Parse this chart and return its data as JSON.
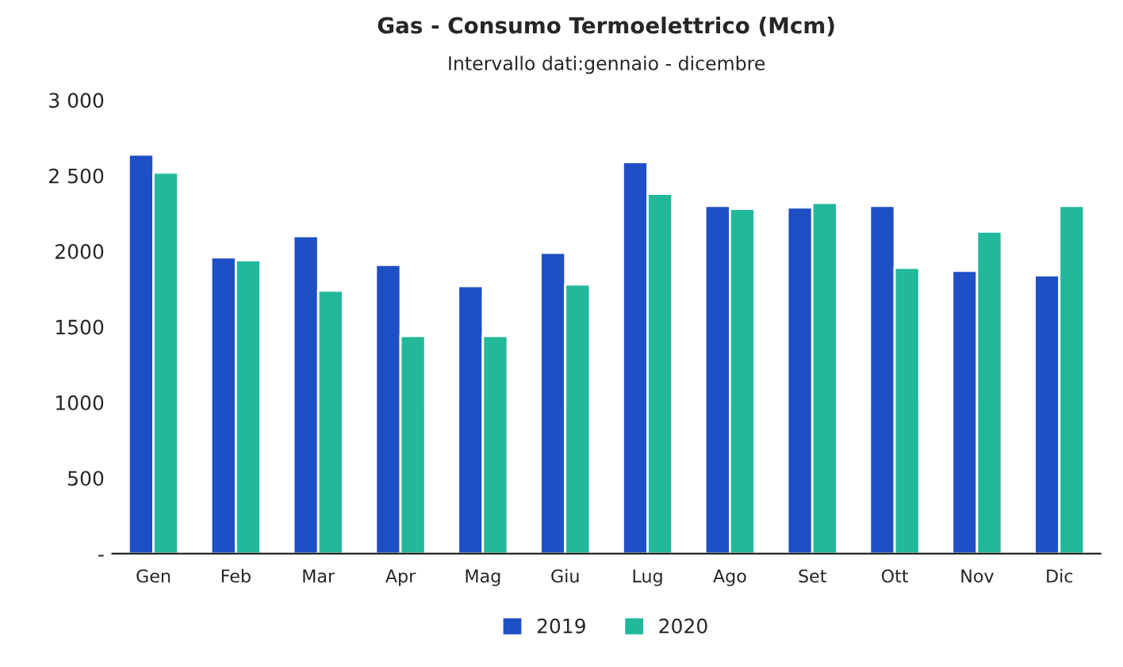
{
  "chart_data": {
    "type": "bar",
    "title": "Gas - Consumo Termoelettrico (Mcm)",
    "subtitle": "Intervallo dati:gennaio - dicembre",
    "categories": [
      "Gen",
      "Feb",
      "Mar",
      "Apr",
      "Mag",
      "Giu",
      "Lug",
      "Ago",
      "Set",
      "Ott",
      "Nov",
      "Dic"
    ],
    "series": [
      {
        "name": "2019",
        "color": "#1f4fc4",
        "values": [
          2640,
          1960,
          2100,
          1910,
          1770,
          1990,
          2590,
          2300,
          2290,
          2300,
          1870,
          1840
        ]
      },
      {
        "name": "2020",
        "color": "#22b89a",
        "values": [
          2520,
          1940,
          1740,
          1440,
          1440,
          1780,
          2380,
          2280,
          2320,
          1890,
          2130,
          2300
        ]
      }
    ],
    "ylim": [
      0,
      3000
    ],
    "yticks": [
      {
        "value": 0,
        "label": "-"
      },
      500,
      1000,
      1500,
      2000,
      {
        "value": 2500,
        "label": "2 500"
      },
      {
        "value": 3000,
        "label": "3 000"
      }
    ],
    "legend": "bottom"
  }
}
